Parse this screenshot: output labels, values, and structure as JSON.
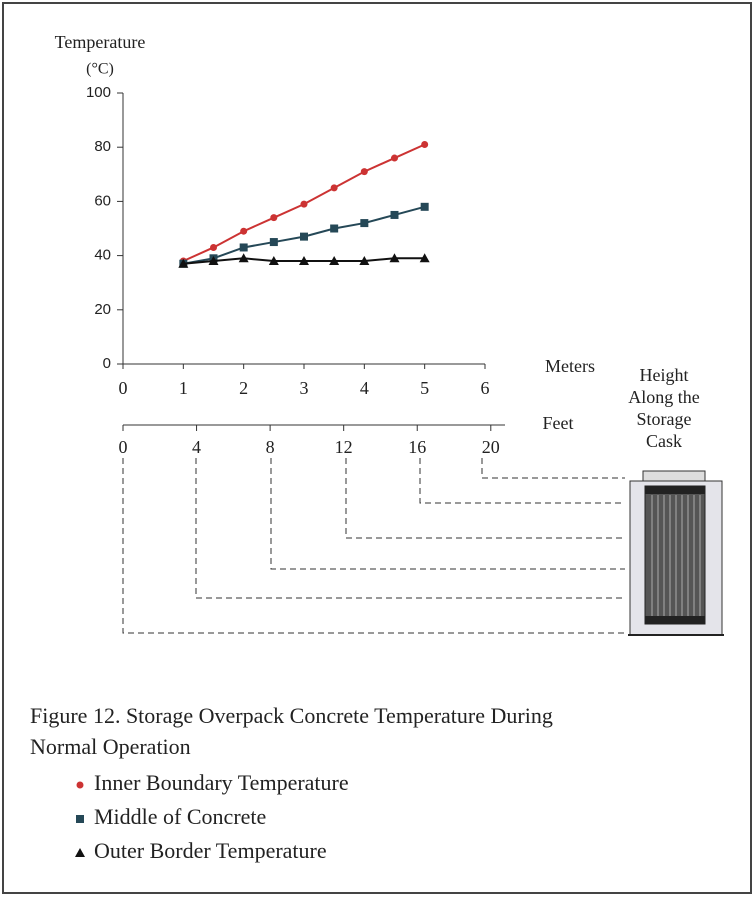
{
  "chart_data": {
    "type": "line",
    "title": [
      "Figure 12.  Storage Overpack Concrete Temperature During",
      "Normal Operation"
    ],
    "y_label": [
      "Temperature",
      "(°C)"
    ],
    "x_label": "Meters",
    "x2_label": "Feet",
    "side_label": [
      "Height",
      "Along the",
      "Storage",
      "Cask"
    ],
    "x": [
      1,
      1.5,
      2,
      2.5,
      3,
      3.5,
      4,
      4.5,
      5
    ],
    "series": [
      {
        "name": "Inner Boundary Temperature",
        "color": "#cc3333",
        "marker": "circle",
        "values": [
          38,
          43,
          49,
          54,
          59,
          65,
          71,
          76,
          81
        ]
      },
      {
        "name": "Middle of Concrete",
        "color": "#254857",
        "marker": "square",
        "values": [
          37,
          39,
          43,
          45,
          47,
          50,
          52,
          55,
          58
        ]
      },
      {
        "name": "Outer Border Temperature",
        "color": "#111111",
        "marker": "triangle",
        "values": [
          37,
          38,
          39,
          38,
          38,
          38,
          38,
          39,
          39
        ]
      }
    ],
    "xlim": [
      0,
      6
    ],
    "xticks": [
      0,
      1,
      2,
      3,
      4,
      5,
      6
    ],
    "x2lim": [
      0,
      19.685
    ],
    "x2ticks": [
      0,
      4,
      8,
      12,
      16,
      20
    ],
    "ylim": [
      0,
      100
    ],
    "yticks": [
      0,
      20,
      40,
      60,
      80,
      100
    ]
  }
}
